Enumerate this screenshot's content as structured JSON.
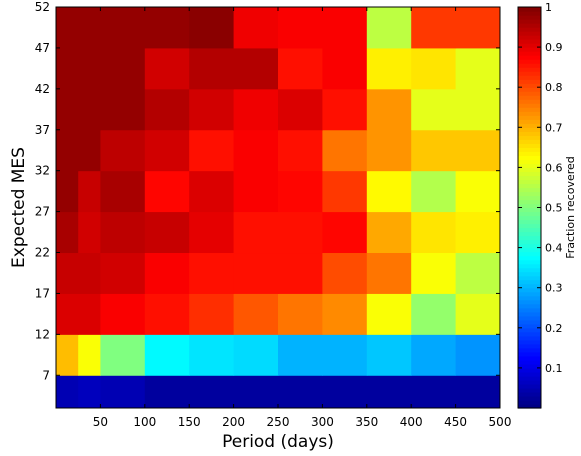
{
  "chart_data": {
    "type": "heatmap",
    "xlabel": "Period (days)",
    "ylabel": "Expected MES",
    "x_ticks": [
      "50",
      "100",
      "150",
      "200",
      "250",
      "300",
      "350",
      "400",
      "450",
      "500"
    ],
    "y_ticks": [
      "7",
      "12",
      "17",
      "22",
      "27",
      "32",
      "37",
      "42",
      "47",
      "52"
    ],
    "x_range": [
      0,
      500
    ],
    "y_range": [
      3,
      52
    ],
    "x_bins": [
      [
        0,
        25
      ],
      [
        25,
        50
      ],
      [
        50,
        100
      ],
      [
        100,
        150
      ],
      [
        150,
        200
      ],
      [
        200,
        250
      ],
      [
        250,
        300
      ],
      [
        300,
        350
      ],
      [
        350,
        400
      ],
      [
        400,
        450
      ],
      [
        450,
        500
      ]
    ],
    "y_bins": [
      [
        3,
        7
      ],
      [
        7,
        12
      ],
      [
        12,
        17
      ],
      [
        17,
        22
      ],
      [
        22,
        27
      ],
      [
        27,
        32
      ],
      [
        32,
        37
      ],
      [
        37,
        42
      ],
      [
        42,
        47
      ],
      [
        47,
        52
      ]
    ],
    "values": [
      [
        0.05,
        0.06,
        0.05,
        0.03,
        0.03,
        0.03,
        0.03,
        0.03,
        0.03,
        0.03,
        0.03
      ],
      [
        0.69,
        0.62,
        0.5,
        0.37,
        0.35,
        0.34,
        0.3,
        0.3,
        0.32,
        0.29,
        0.27
      ],
      [
        0.91,
        0.91,
        0.88,
        0.86,
        0.83,
        0.79,
        0.76,
        0.74,
        0.62,
        0.52,
        0.6
      ],
      [
        0.93,
        0.93,
        0.92,
        0.88,
        0.86,
        0.86,
        0.86,
        0.8,
        0.76,
        0.62,
        0.56
      ],
      [
        0.96,
        0.92,
        0.94,
        0.93,
        0.9,
        0.86,
        0.86,
        0.87,
        0.71,
        0.65,
        0.64
      ],
      [
        0.98,
        0.93,
        0.96,
        0.87,
        0.91,
        0.88,
        0.87,
        0.82,
        0.63,
        0.55,
        0.62
      ],
      [
        0.98,
        0.98,
        0.94,
        0.92,
        0.86,
        0.88,
        0.86,
        0.76,
        0.73,
        0.68,
        0.68
      ],
      [
        0.98,
        0.98,
        0.98,
        0.95,
        0.92,
        0.89,
        0.91,
        0.86,
        0.73,
        0.6,
        0.6
      ],
      [
        0.98,
        0.98,
        0.98,
        0.92,
        0.95,
        0.95,
        0.86,
        0.88,
        0.64,
        0.65,
        0.6
      ],
      [
        0.98,
        0.98,
        0.98,
        0.98,
        0.99,
        0.89,
        0.88,
        0.88,
        0.56,
        0.82,
        0.82
      ]
    ],
    "colorbar": {
      "label": "Fraction recovered",
      "range": [
        0,
        1
      ],
      "ticks": [
        "0.1",
        "0.2",
        "0.3",
        "0.4",
        "0.5",
        "0.6",
        "0.7",
        "0.8",
        "0.9",
        "1"
      ],
      "colormap": "jet"
    },
    "grid": false
  }
}
